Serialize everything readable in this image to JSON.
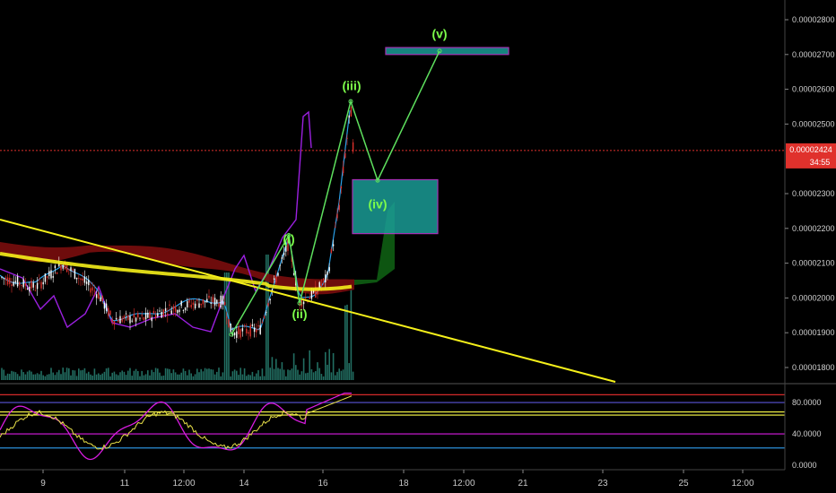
{
  "chart_data": {
    "type": "line",
    "price_axis": {
      "ticks": [
        "0.00002800",
        "0.00002700",
        "0.00002600",
        "0.00002500",
        "0.00002300",
        "0.00002200",
        "0.00002100",
        "0.00002000",
        "0.00001900",
        "0.00001800"
      ],
      "ylim": [
        1.77e-05,
        2.86e-05
      ]
    },
    "oscillator_axis": {
      "ticks": [
        "80.0000",
        "40.0000",
        "0.0000"
      ],
      "ylim": [
        0,
        100
      ],
      "levels": [
        {
          "value": 90,
          "color": "#d42a2a"
        },
        {
          "value": 80,
          "color": "#5a55d8"
        },
        {
          "value": 68,
          "color": "#ffff4a"
        },
        {
          "value": 64,
          "color": "#ffff4a"
        },
        {
          "value": 40,
          "color": "#d81ce0"
        },
        {
          "value": 22,
          "color": "#2c8fd8"
        }
      ]
    },
    "x_axis": {
      "ticks": [
        "9",
        "11",
        "12:00",
        "14",
        "16",
        "18",
        "12:00",
        "21",
        "23",
        "25",
        "12:00"
      ]
    },
    "current_price": {
      "value": 2.424e-05,
      "label": "0.00002424",
      "countdown": "34:55",
      "color": "#e0312c"
    },
    "wave_labels": [
      {
        "text": "(i)",
        "price": 2.17e-05
      },
      {
        "text": "(ii)",
        "price": 1.955e-05
      },
      {
        "text": "(iii)",
        "price": 2.61e-05
      },
      {
        "text": "(iv)",
        "price": 2.27e-05
      },
      {
        "text": "(v)",
        "price": 2.76e-05
      }
    ],
    "wave_path": [
      {
        "x": "start",
        "price": 1.895e-05
      },
      {
        "x": "(i)",
        "price": 2.18e-05
      },
      {
        "x": "(ii)",
        "price": 1.985e-05
      },
      {
        "x": "(iii)",
        "price": 2.565e-05
      },
      {
        "x": "(iv)",
        "price": 2.338e-05
      },
      {
        "x": "(v)",
        "price": 2.71e-05
      }
    ],
    "zones": [
      {
        "name": "wave-iv-zone",
        "price_top": 2.34e-05,
        "price_bottom": 2.185e-05,
        "fill": "#1a9c96",
        "stroke": "#c23bd4"
      },
      {
        "name": "wave-v-target",
        "price_top": 2.72e-05,
        "price_bottom": 2.7e-05,
        "fill": "#1a9c96",
        "stroke": "#c23bd4"
      }
    ],
    "colors": {
      "background": "#000000",
      "wave_line": "#5ee05e",
      "trendline": "#f5f01a",
      "moving_average": "#f5f01a",
      "purple_line": "#9b20e0",
      "blue_line": "#2aa0e8",
      "cloud_red": "#7a0d0d",
      "cloud_green": "#0e5a12",
      "candle_up": "#ffffff",
      "candle_down": "#e0312c",
      "volume": "#2a8a7a"
    }
  }
}
